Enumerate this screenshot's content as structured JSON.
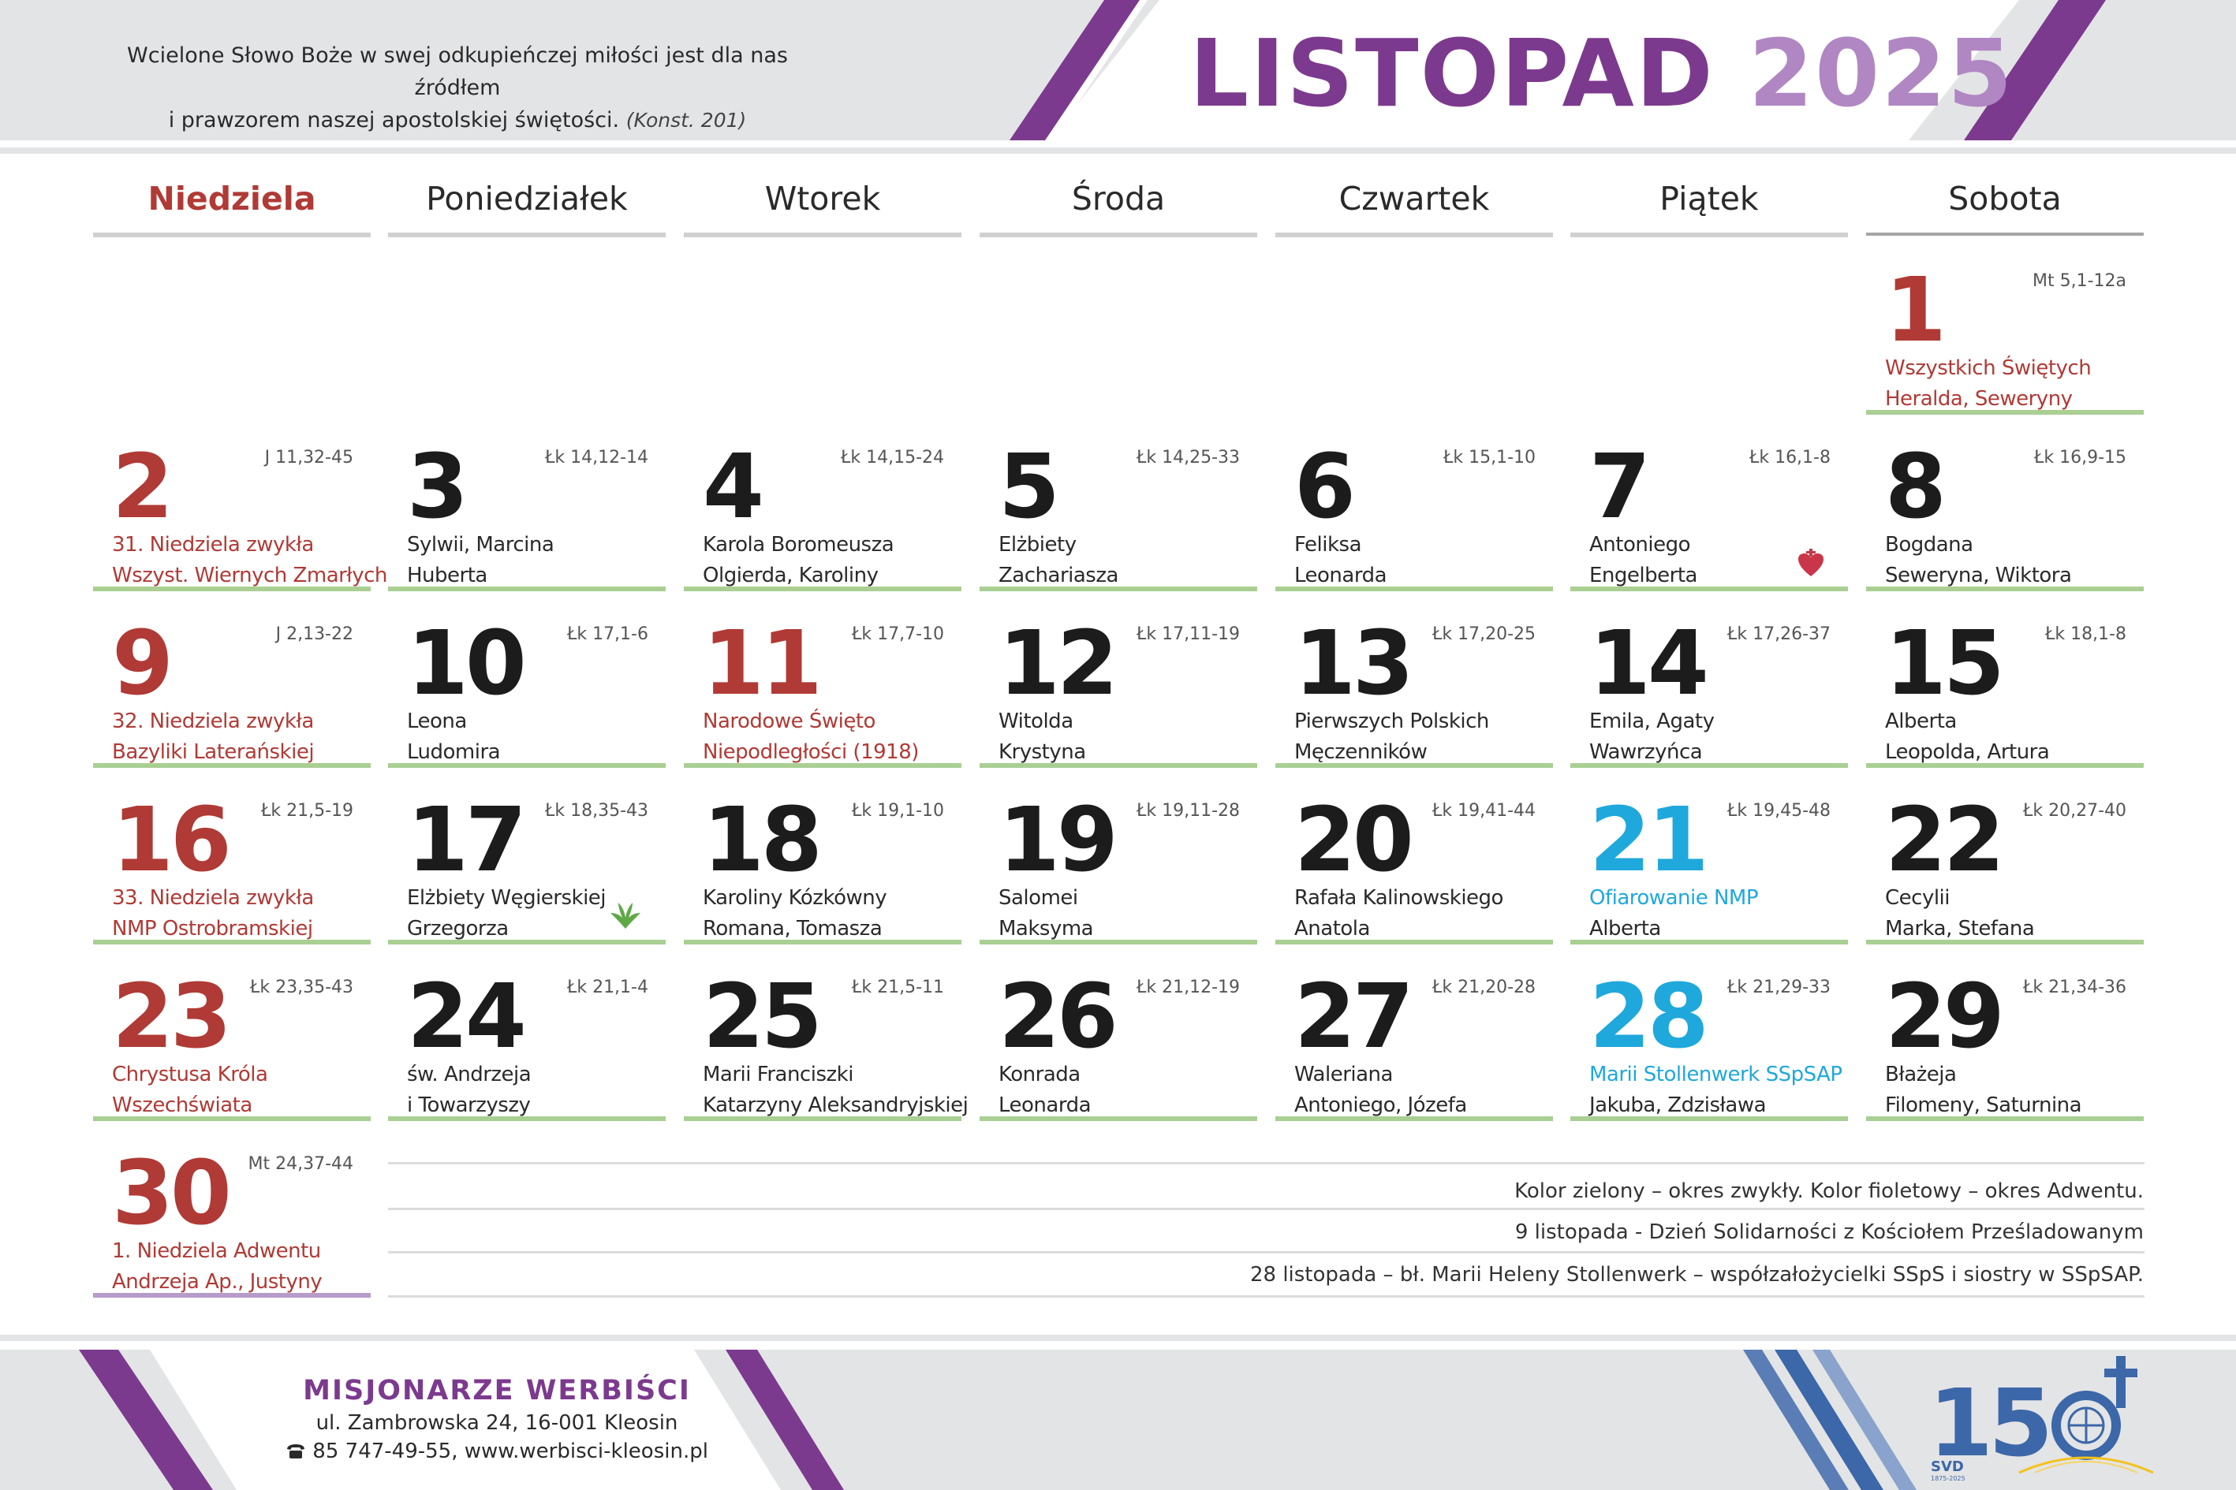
{
  "header": {
    "quote_line1": "Wcielone Słowo Boże w swej odkupieńczej miłości jest dla nas źródłem",
    "quote_line2": "i prawzorem naszej apostolskiej świętości.",
    "quote_source": "(Konst. 201)",
    "month": "LISTOPAD",
    "year": "2025"
  },
  "weekdays": [
    "Niedziela",
    "Poniedziałek",
    "Wtorek",
    "Środa",
    "Czwartek",
    "Piątek",
    "Sobota"
  ],
  "days": [
    {
      "num": "1",
      "reading": "Mt 5,1-12a",
      "n1": "Wszystkich Świętych",
      "n2": "Heralda, Seweryny"
    },
    {
      "num": "2",
      "reading": "J 11,32-45",
      "n1": "31. Niedziela zwykła",
      "n2": "Wszyst. Wiernych Zmarłych"
    },
    {
      "num": "3",
      "reading": "Łk 14,12-14",
      "n1": "Sylwii, Marcina",
      "n2": "Huberta"
    },
    {
      "num": "4",
      "reading": "Łk 14,15-24",
      "n1": "Karola Boromeusza",
      "n2": "Olgierda, Karoliny"
    },
    {
      "num": "5",
      "reading": "Łk 14,25-33",
      "n1": "Elżbiety",
      "n2": "Zachariasza"
    },
    {
      "num": "6",
      "reading": "Łk 15,1-10",
      "n1": "Feliksa",
      "n2": "Leonarda"
    },
    {
      "num": "7",
      "reading": "Łk 16,1-8",
      "n1": "Antoniego",
      "n2": "Engelberta"
    },
    {
      "num": "8",
      "reading": "Łk 16,9-15",
      "n1": "Bogdana",
      "n2": "Seweryna, Wiktora"
    },
    {
      "num": "9",
      "reading": "J 2,13-22",
      "n1": "32. Niedziela zwykła",
      "n2": "Bazyliki Laterańskiej"
    },
    {
      "num": "10",
      "reading": "Łk 17,1-6",
      "n1": "Leona",
      "n2": "Ludomira"
    },
    {
      "num": "11",
      "reading": "Łk 17,7-10",
      "n1": "Narodowe Święto",
      "n2": "Niepodległości (1918)"
    },
    {
      "num": "12",
      "reading": "Łk 17,11-19",
      "n1": "Witolda",
      "n2": "Krystyna"
    },
    {
      "num": "13",
      "reading": "Łk 17,20-25",
      "n1": "Pierwszych Polskich",
      "n2": "Męczenników"
    },
    {
      "num": "14",
      "reading": "Łk 17,26-37",
      "n1": "Emila, Agaty",
      "n2": "Wawrzyńca"
    },
    {
      "num": "15",
      "reading": "Łk 18,1-8",
      "n1": "Alberta",
      "n2": "Leopolda, Artura"
    },
    {
      "num": "16",
      "reading": "Łk 21,5-19",
      "n1": "33. Niedziela zwykła",
      "n2": "NMP Ostrobramskiej"
    },
    {
      "num": "17",
      "reading": "Łk 18,35-43",
      "n1": "Elżbiety Węgierskiej",
      "n2": "Grzegorza"
    },
    {
      "num": "18",
      "reading": "Łk 19,1-10",
      "n1": "Karoliny Kózkówny",
      "n2": "Romana, Tomasza"
    },
    {
      "num": "19",
      "reading": "Łk 19,11-28",
      "n1": "Salomei",
      "n2": "Maksyma"
    },
    {
      "num": "20",
      "reading": "Łk 19,41-44",
      "n1": "Rafała Kalinowskiego",
      "n2": "Anatola"
    },
    {
      "num": "21",
      "reading": "Łk 19,45-48",
      "n1": "Ofiarowanie NMP",
      "n2": "Alberta"
    },
    {
      "num": "22",
      "reading": "Łk 20,27-40",
      "n1": "Cecylii",
      "n2": "Marka, Stefana"
    },
    {
      "num": "23",
      "reading": "Łk 23,35-43",
      "n1": "Chrystusa Króla",
      "n2": "Wszechświata"
    },
    {
      "num": "24",
      "reading": "Łk 21,1-4",
      "n1": "św. Andrzeja",
      "n2": "i Towarzyszy"
    },
    {
      "num": "25",
      "reading": "Łk 21,5-11",
      "n1": "Marii Franciszki",
      "n2": "Katarzyny Aleksandryjskiej"
    },
    {
      "num": "26",
      "reading": "Łk 21,12-19",
      "n1": "Konrada",
      "n2": "Leonarda"
    },
    {
      "num": "27",
      "reading": "Łk 21,20-28",
      "n1": "Waleriana",
      "n2": "Antoniego, Józefa"
    },
    {
      "num": "28",
      "reading": "Łk 21,29-33",
      "n1": "Marii Stollenwerk SSpSAP",
      "n2": "Jakuba, Zdzisława"
    },
    {
      "num": "29",
      "reading": "Łk 21,34-36",
      "n1": "Błażeja",
      "n2": "Filomeny, Saturnina"
    },
    {
      "num": "30",
      "reading": "Mt 24,37-44",
      "n1": "1. Niedziela Adwentu",
      "n2": "Andrzeja Ap., Justyny"
    }
  ],
  "notes": [
    "Kolor zielony – okres zwykły. Kolor fioletowy – okres Adwentu.",
    "9 listopada - Dzień Solidarności z Kościołem Prześladowanym",
    "28 listopada – bł. Marii Heleny Stollenwerk – współzałożycielki SSpS i siostry w SSpSAP."
  ],
  "footer": {
    "org_name": "MISJONARZE WERBIŚCI",
    "address": "ul. Zambrowska 24, 16-001 Kleosin",
    "phone_icon": "phone-icon",
    "contact": "85 747-49-55, www.werbisci-kleosin.pl",
    "logo_svd": "SVD",
    "logo_years": "1875-2025"
  },
  "icons": {
    "heart": "sacred-heart-icon",
    "dove": "dove-icon"
  },
  "colors": {
    "purple": "#7c3a8e",
    "light_purple": "#b087c2",
    "sunday_red": "#b03a35",
    "blue": "#1fa8dc",
    "green_line": "#a9cf93",
    "violet_line": "#b79bc9",
    "band_gray": "#e3e4e6",
    "logo_blue": "#3c67a8"
  }
}
